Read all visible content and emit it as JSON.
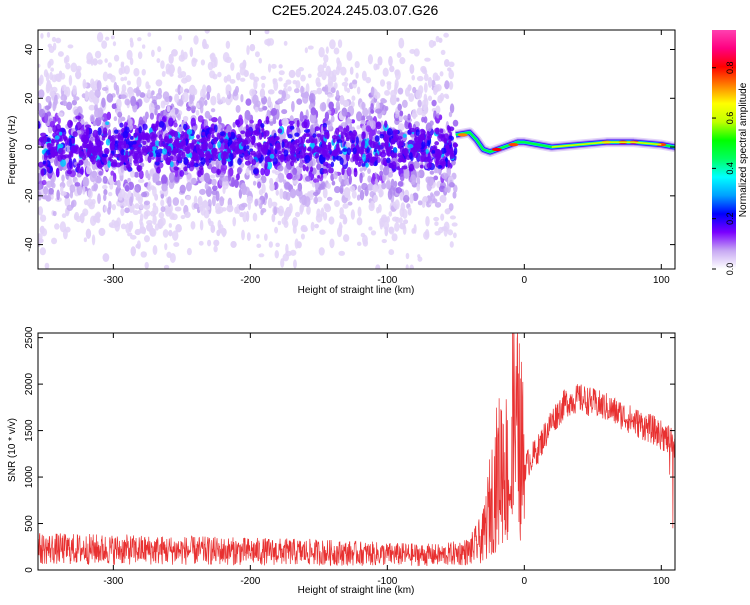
{
  "title": "C2E5.2024.245.03.07.G26",
  "chart_data": [
    {
      "type": "heatmap",
      "xlabel": "Height of straight line (km)",
      "ylabel": "Frequency (Hz)",
      "xlim": [
        -355,
        110
      ],
      "ylim": [
        -50,
        48
      ],
      "xticks": [
        -300,
        -200,
        -100,
        0,
        100
      ],
      "yticks": [
        -40,
        -20,
        0,
        20,
        40
      ],
      "colorbar": {
        "label": "Normalized spectral amplitude",
        "range": [
          0.0,
          0.95
        ],
        "ticks": [
          0.0,
          0.2,
          0.4,
          0.6,
          0.8
        ],
        "tick_labels": [
          "0.0",
          "0.2",
          "0.4",
          "0.6",
          "0.8"
        ],
        "colormap": [
          "#ffffff",
          "#c7a8f3",
          "#7a00ff",
          "#0000ff",
          "#00a0ff",
          "#00ffff",
          "#00ff60",
          "#00ff00",
          "#c0ff00",
          "#ffff00",
          "#ff8000",
          "#ff0000",
          "#ff0080",
          "#ff40b0"
        ]
      },
      "ridge": [
        [
          -50,
          5
        ],
        [
          -40,
          6
        ],
        [
          -35,
          3
        ],
        [
          -30,
          -1
        ],
        [
          -25,
          -2
        ],
        [
          -20,
          -1
        ],
        [
          -15,
          0
        ],
        [
          -10,
          1
        ],
        [
          -5,
          2
        ],
        [
          0,
          2
        ],
        [
          10,
          1
        ],
        [
          20,
          0
        ],
        [
          40,
          1
        ],
        [
          60,
          2
        ],
        [
          80,
          2
        ],
        [
          100,
          1
        ],
        [
          110,
          0
        ]
      ],
      "noise_region": {
        "x_from": -355,
        "x_to": -50,
        "center_hz": 0,
        "spread_hz": 8
      }
    },
    {
      "type": "line",
      "xlabel": "Height of straight line (km)",
      "ylabel": "SNR (10 * v/v)",
      "xlim": [
        -355,
        110
      ],
      "ylim": [
        0,
        2550
      ],
      "xticks": [
        -300,
        -200,
        -100,
        0,
        100
      ],
      "yticks": [
        0,
        500,
        1000,
        1500,
        2000,
        2500
      ],
      "color": "#e83030",
      "envelope": [
        [
          -355,
          230
        ],
        [
          -300,
          220
        ],
        [
          -250,
          210
        ],
        [
          -200,
          200
        ],
        [
          -150,
          190
        ],
        [
          -100,
          170
        ],
        [
          -60,
          160
        ],
        [
          -40,
          200
        ],
        [
          -30,
          350
        ],
        [
          -25,
          700
        ],
        [
          -20,
          1000
        ],
        [
          -15,
          1200
        ],
        [
          -10,
          900
        ],
        [
          -5,
          1500
        ],
        [
          0,
          1100
        ],
        [
          10,
          1300
        ],
        [
          20,
          1600
        ],
        [
          30,
          1800
        ],
        [
          40,
          1850
        ],
        [
          60,
          1750
        ],
        [
          80,
          1600
        ],
        [
          95,
          1500
        ],
        [
          110,
          1350
        ]
      ]
    }
  ]
}
